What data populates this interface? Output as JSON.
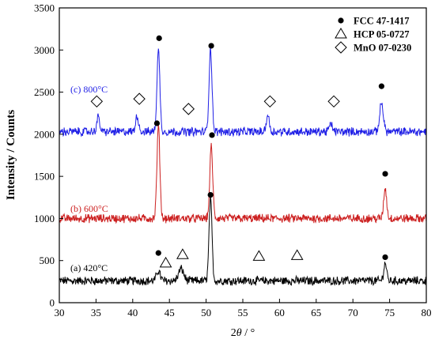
{
  "chart_data": {
    "type": "line",
    "xlabel_parts": [
      "2",
      "θ",
      " / °"
    ],
    "ylabel": "Intensity / Counts",
    "xlim": [
      30,
      80
    ],
    "ylim": [
      0,
      3500
    ],
    "x_ticks": [
      30,
      35,
      40,
      45,
      50,
      55,
      60,
      65,
      70,
      75,
      80
    ],
    "y_ticks": [
      0,
      500,
      1000,
      1500,
      2000,
      2500,
      3000,
      3500
    ],
    "grid": false,
    "legend_position": "top-right",
    "legend": [
      {
        "marker": "filled-circle",
        "label": "FCC 47-1417"
      },
      {
        "marker": "open-triangle",
        "label": "HCP 05-0727"
      },
      {
        "marker": "open-diamond",
        "label": "MnO 07-0230"
      }
    ],
    "series": [
      {
        "name": "(a) 420°C",
        "color": "#000000",
        "baseline": 260,
        "noise": 45,
        "peaks": [
          {
            "x": 43.5,
            "height": 120,
            "width": 0.25
          },
          {
            "x": 46.6,
            "height": 140,
            "width": 0.35
          },
          {
            "x": 50.6,
            "height": 970,
            "width": 0.2
          },
          {
            "x": 74.4,
            "height": 210,
            "width": 0.2
          }
        ],
        "markers": [
          {
            "type": "filled-circle",
            "x": 43.5,
            "y": 590
          },
          {
            "type": "open-triangle",
            "x": 44.5,
            "y": 470
          },
          {
            "type": "open-triangle",
            "x": 46.8,
            "y": 570
          },
          {
            "type": "filled-circle",
            "x": 50.6,
            "y": 1280
          },
          {
            "type": "open-triangle",
            "x": 57.2,
            "y": 550
          },
          {
            "type": "open-triangle",
            "x": 62.4,
            "y": 560
          },
          {
            "type": "filled-circle",
            "x": 74.4,
            "y": 540
          }
        ]
      },
      {
        "name": "(b) 600°C",
        "color": "#cc1f1f",
        "baseline": 1000,
        "noise": 45,
        "peaks": [
          {
            "x": 43.5,
            "height": 1090,
            "width": 0.2
          },
          {
            "x": 50.7,
            "height": 850,
            "width": 0.2
          },
          {
            "x": 74.4,
            "height": 360,
            "width": 0.2
          }
        ],
        "markers": [
          {
            "type": "filled-circle",
            "x": 43.3,
            "y": 2130
          },
          {
            "type": "filled-circle",
            "x": 50.8,
            "y": 1990
          },
          {
            "type": "filled-circle",
            "x": 74.4,
            "y": 1530
          }
        ]
      },
      {
        "name": "(c) 800°C",
        "color": "#1f1fe6",
        "baseline": 2030,
        "noise": 45,
        "peaks": [
          {
            "x": 35.3,
            "height": 170,
            "width": 0.2
          },
          {
            "x": 40.6,
            "height": 190,
            "width": 0.2
          },
          {
            "x": 43.5,
            "height": 960,
            "width": 0.2
          },
          {
            "x": 50.6,
            "height": 990,
            "width": 0.2
          },
          {
            "x": 58.4,
            "height": 200,
            "width": 0.2
          },
          {
            "x": 67.0,
            "height": 80,
            "width": 0.25
          },
          {
            "x": 73.9,
            "height": 340,
            "width": 0.25
          }
        ],
        "markers": [
          {
            "type": "open-diamond",
            "x": 35.1,
            "y": 2390
          },
          {
            "type": "open-diamond",
            "x": 40.9,
            "y": 2420
          },
          {
            "type": "filled-circle",
            "x": 43.6,
            "y": 3140
          },
          {
            "type": "open-diamond",
            "x": 47.6,
            "y": 2300
          },
          {
            "type": "filled-circle",
            "x": 50.7,
            "y": 3050
          },
          {
            "type": "open-diamond",
            "x": 58.7,
            "y": 2390
          },
          {
            "type": "open-diamond",
            "x": 67.4,
            "y": 2390
          },
          {
            "type": "filled-circle",
            "x": 73.9,
            "y": 2570
          }
        ]
      }
    ]
  }
}
